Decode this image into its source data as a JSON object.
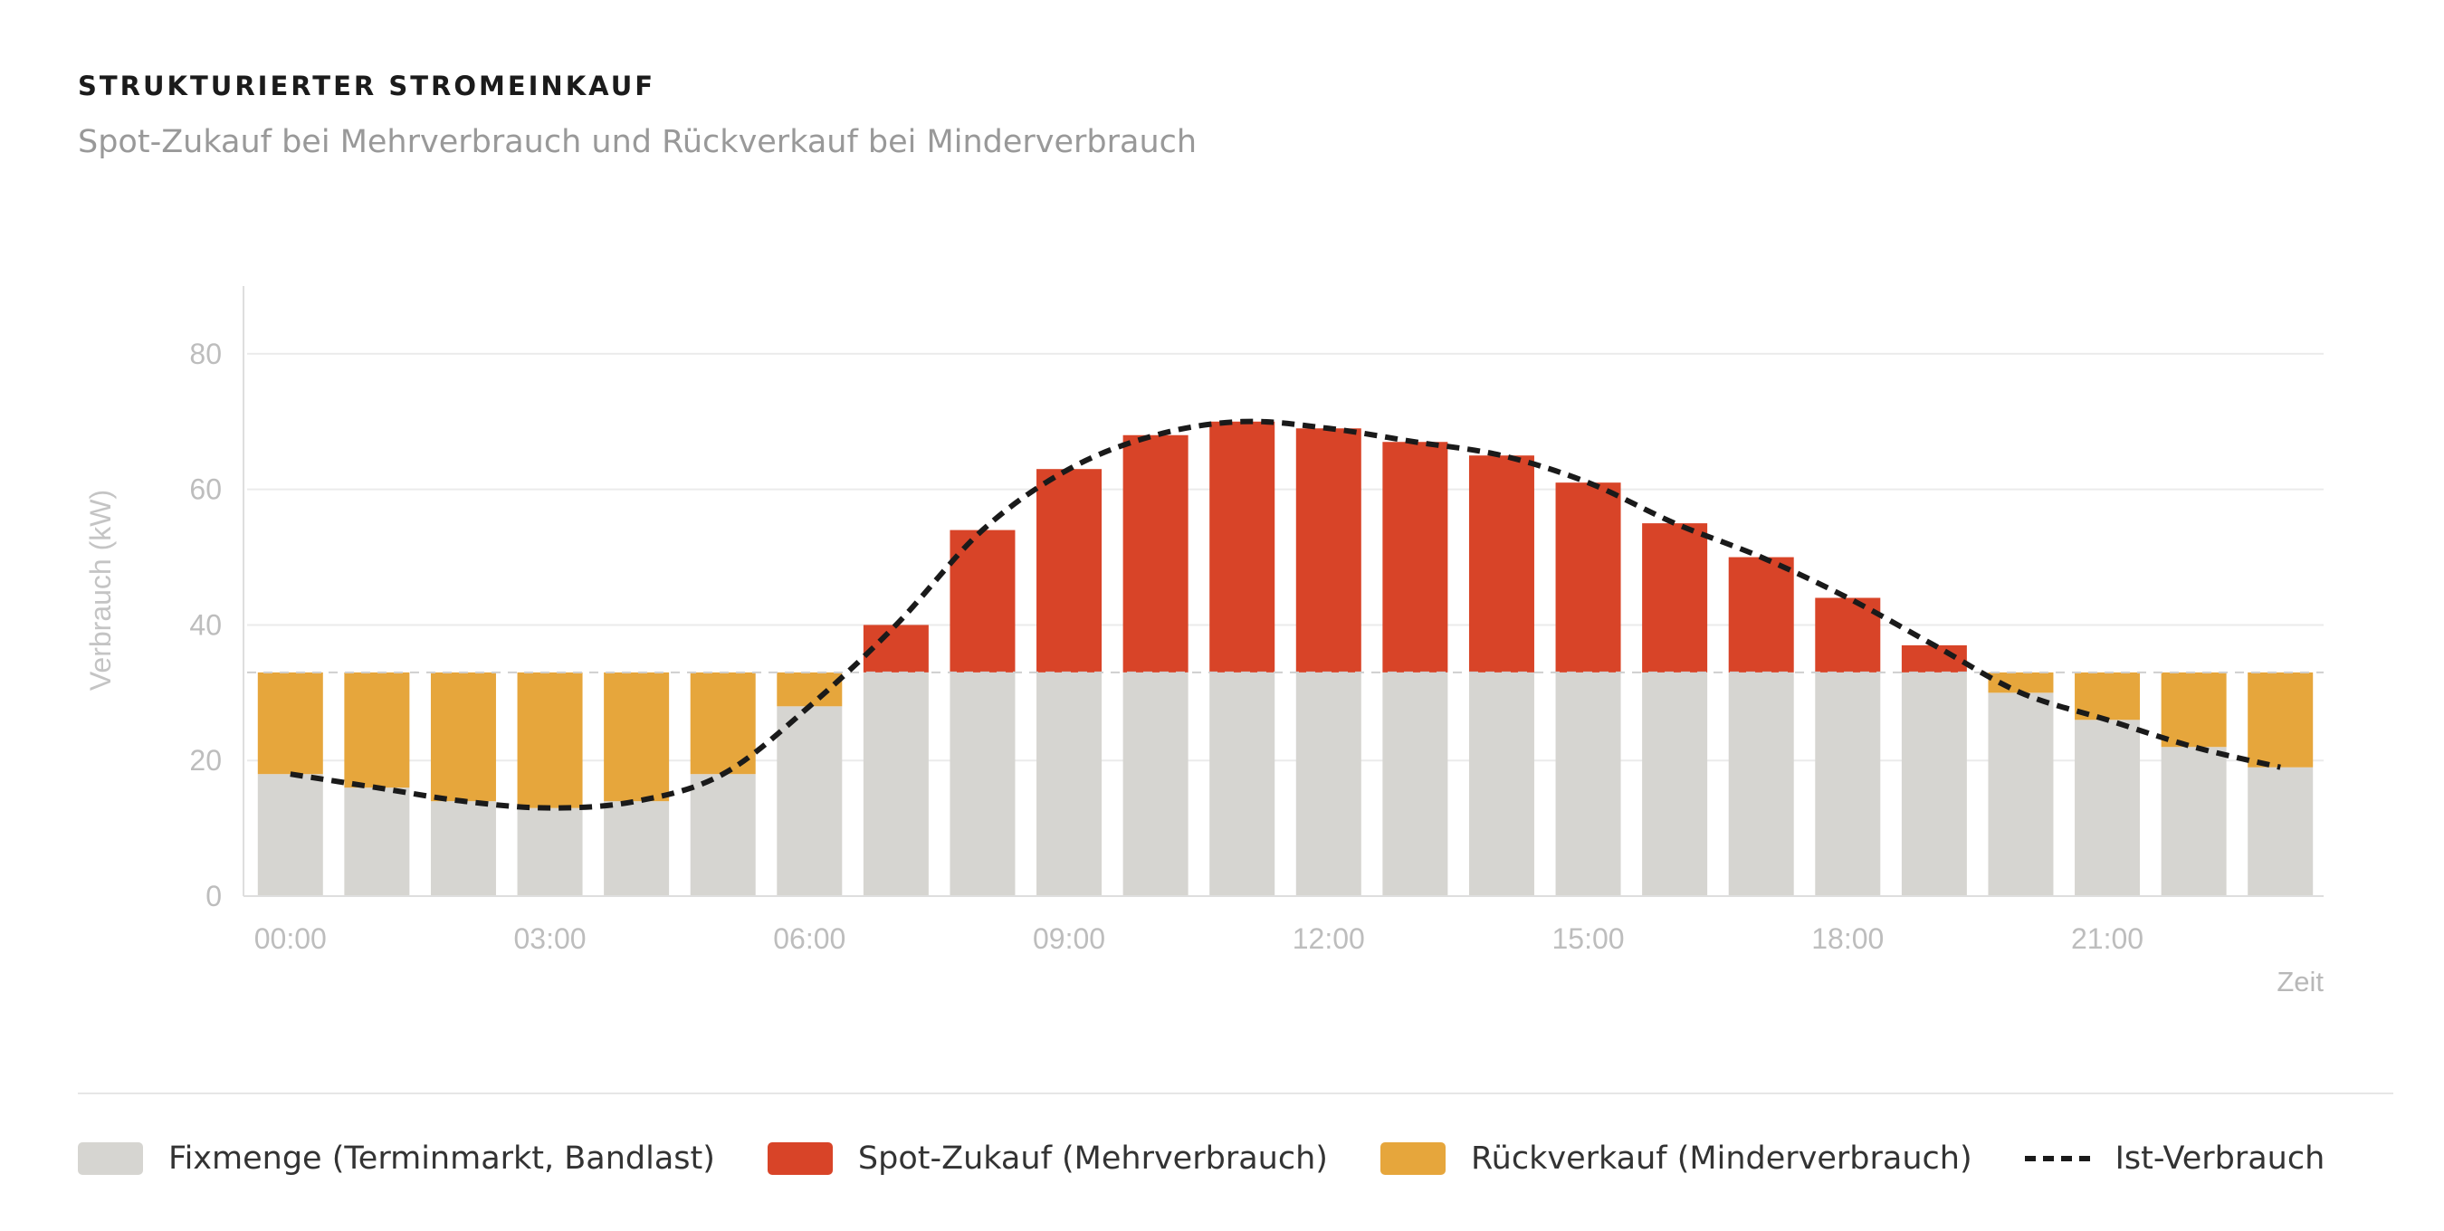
{
  "title": "STRUKTURIERTER STROMEINKAUF",
  "subtitle": "Spot-Zukauf bei Mehrverbrauch und Rückverkauf bei Minderverbrauch",
  "colors": {
    "fix": "#d6d5d1",
    "spot": "#d84428",
    "rueck": "#e6a63c",
    "line": "#1a1a1a",
    "grid": "#ebebeb",
    "axis_text": "#bdbdbd"
  },
  "chart_data": {
    "type": "bar",
    "x": [
      "00:00",
      "01:00",
      "02:00",
      "03:00",
      "04:00",
      "05:00",
      "06:00",
      "07:00",
      "08:00",
      "09:00",
      "10:00",
      "11:00",
      "12:00",
      "13:00",
      "14:00",
      "15:00",
      "16:00",
      "17:00",
      "18:00",
      "19:00",
      "20:00",
      "21:00",
      "22:00",
      "23:00"
    ],
    "x_tick_labels": [
      "00:00",
      "03:00",
      "06:00",
      "09:00",
      "12:00",
      "15:00",
      "18:00",
      "21:00"
    ],
    "xlabel": "Zeit",
    "ylabel": "Verbrauch (kW)",
    "ylim": [
      0,
      90
    ],
    "y_ticks": [
      0,
      20,
      40,
      60,
      80
    ],
    "grid": true,
    "baseline": 33,
    "series": [
      {
        "name": "Fixmenge (Terminmarkt, Bandlast)",
        "type": "bar",
        "values": [
          18,
          16,
          14,
          13,
          14,
          18,
          28,
          33,
          33,
          33,
          33,
          33,
          33,
          33,
          33,
          33,
          33,
          33,
          33,
          33,
          30,
          26,
          22,
          19
        ]
      },
      {
        "name": "Spot-Zukauf (Mehrverbrauch)",
        "type": "bar",
        "values": [
          0,
          0,
          0,
          0,
          0,
          0,
          0,
          7,
          21,
          30,
          35,
          37,
          36,
          34,
          32,
          28,
          22,
          17,
          11,
          4,
          0,
          0,
          0,
          0
        ]
      },
      {
        "name": "Rückverkauf (Minderverbrauch)",
        "type": "bar",
        "values": [
          15,
          17,
          19,
          20,
          19,
          15,
          5,
          0,
          0,
          0,
          0,
          0,
          0,
          0,
          0,
          0,
          0,
          0,
          0,
          0,
          3,
          7,
          11,
          14
        ]
      },
      {
        "name": "Ist-Verbrauch",
        "type": "line",
        "values": [
          18,
          16,
          14,
          13,
          14,
          18,
          28,
          40,
          54,
          63,
          68,
          70,
          69,
          67,
          65,
          61,
          55,
          50,
          44,
          37,
          30,
          26,
          22,
          19
        ]
      }
    ]
  },
  "legend": [
    {
      "label": "Fixmenge (Terminmarkt, Bandlast)",
      "kind": "box",
      "color": "#d6d5d1"
    },
    {
      "label": "Spot-Zukauf (Mehrverbrauch)",
      "kind": "box",
      "color": "#d84428"
    },
    {
      "label": "Rückverkauf (Minderverbrauch)",
      "kind": "box",
      "color": "#e6a63c"
    },
    {
      "label": "Ist-Verbrauch",
      "kind": "line",
      "color": "#1a1a1a"
    }
  ]
}
